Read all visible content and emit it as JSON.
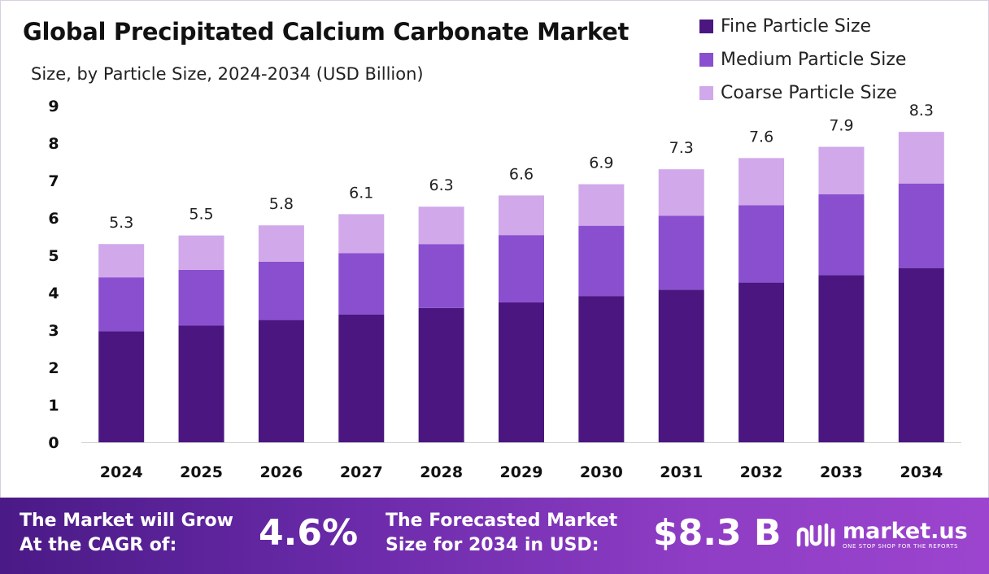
{
  "header": {
    "title": "Global Precipitated Calcium Carbonate Market",
    "subtitle": "Size, by  Particle Size, 2024-2034 (USD Billion)"
  },
  "legend": [
    {
      "label": "Fine Particle Size",
      "color": "#4b1680"
    },
    {
      "label": "Medium Particle Size",
      "color": "#8a4fcf"
    },
    {
      "label": "Coarse Particle Size",
      "color": "#d1a8ea"
    }
  ],
  "chart_data": {
    "type": "bar",
    "stacked": true,
    "categories": [
      "2024",
      "2025",
      "2026",
      "2027",
      "2028",
      "2029",
      "2030",
      "2031",
      "2032",
      "2033",
      "2034"
    ],
    "series": [
      {
        "name": "Fine Particle Size",
        "color": "#4b1680",
        "values": [
          2.97,
          3.12,
          3.27,
          3.42,
          3.59,
          3.74,
          3.91,
          4.08,
          4.27,
          4.47,
          4.66
        ]
      },
      {
        "name": "Medium Particle Size",
        "color": "#8a4fcf",
        "values": [
          1.44,
          1.49,
          1.56,
          1.64,
          1.71,
          1.8,
          1.88,
          1.98,
          2.07,
          2.16,
          2.26
        ]
      },
      {
        "name": "Coarse Particle Size",
        "color": "#d1a8ea",
        "values": [
          0.89,
          0.92,
          0.97,
          1.04,
          1.0,
          1.06,
          1.11,
          1.24,
          1.26,
          1.27,
          1.38
        ]
      }
    ],
    "totals": [
      "5.3",
      "5.5",
      "5.8",
      "6.1",
      "6.3",
      "6.6",
      "6.9",
      "7.3",
      "7.6",
      "7.9",
      "8.3"
    ],
    "yticks": [
      "0",
      "1",
      "2",
      "3",
      "4",
      "5",
      "6",
      "7",
      "8",
      "9"
    ],
    "ylim": [
      0,
      9
    ],
    "xlabel": "",
    "ylabel": "",
    "grid": false
  },
  "footer": {
    "cagr_label": "The Market will Grow\nAt the CAGR of:",
    "cagr_value": "4.6%",
    "forecast_label": "The Forecasted Market\nSize for 2034 in USD:",
    "forecast_value": "$8.3 B",
    "brand_name": "market.us",
    "brand_tagline": "ONE STOP SHOP FOR THE REPORTS"
  }
}
